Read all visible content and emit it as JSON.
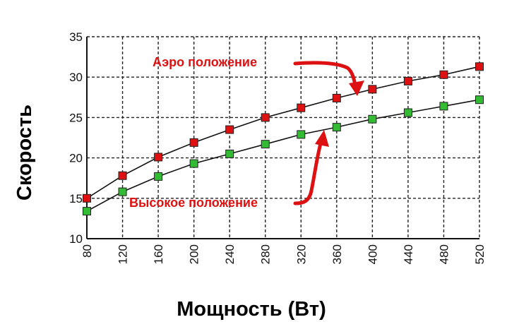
{
  "chart_data": {
    "type": "line",
    "title": "",
    "xlabel": "Мощность (Вт)",
    "ylabel": "Скорость",
    "x": [
      80,
      120,
      160,
      200,
      240,
      280,
      320,
      360,
      400,
      440,
      480,
      520
    ],
    "xlim": [
      80,
      520
    ],
    "ylim": [
      10,
      35
    ],
    "xticks": [
      "80",
      "120",
      "160",
      "200",
      "240",
      "280",
      "320",
      "360",
      "400",
      "440",
      "480",
      "520"
    ],
    "yticks": [
      "10",
      "15",
      "20",
      "25",
      "30",
      "35"
    ],
    "grid": true,
    "series": [
      {
        "name": "Аэро положение",
        "color": "#dd1111",
        "marker": "square",
        "values": [
          15.0,
          17.8,
          20.1,
          21.9,
          23.5,
          25.0,
          26.2,
          27.4,
          28.5,
          29.5,
          30.3,
          31.3
        ]
      },
      {
        "name": "Высокое положение",
        "color": "#33bb33",
        "marker": "square",
        "values": [
          13.4,
          15.8,
          17.7,
          19.3,
          20.5,
          21.7,
          22.9,
          23.8,
          24.8,
          25.6,
          26.4,
          27.2
        ]
      }
    ],
    "annotations": [
      {
        "text": "Аэро положение",
        "color": "#dd1111"
      },
      {
        "text": "Высокое положение",
        "color": "#dd1111"
      }
    ]
  }
}
